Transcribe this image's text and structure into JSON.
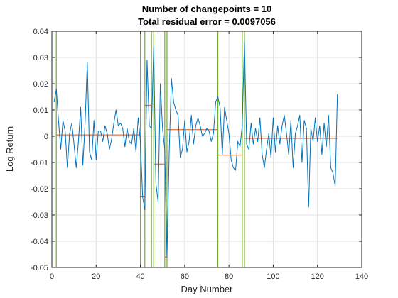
{
  "chart_data": {
    "type": "line",
    "title": "Number of changepoints = 10",
    "subtitle": "Total residual error = 0.0097056",
    "xlabel": "Day Number",
    "ylabel": "Log Return",
    "xlim": [
      0,
      140
    ],
    "ylim": [
      -0.05,
      0.04
    ],
    "xticks": [
      0,
      20,
      40,
      60,
      80,
      100,
      120,
      140
    ],
    "xtick_labels": [
      "0",
      "20",
      "40",
      "60",
      "80",
      "100",
      "120",
      "140"
    ],
    "yticks": [
      -0.05,
      -0.04,
      -0.03,
      -0.02,
      -0.01,
      0,
      0.01,
      0.02,
      0.03,
      0.04
    ],
    "ytick_labels": [
      "-0.05",
      "-0.04",
      "-0.03",
      "-0.02",
      "-0.01",
      "0",
      "0.01",
      "0.02",
      "0.03",
      "0.04"
    ],
    "grid": true,
    "colors": {
      "series": "#0072BD",
      "segment_mean": "#D95319",
      "changepoint": "#77AC30",
      "grid": "#e0e0e0",
      "axis": "#262626"
    },
    "series": [
      {
        "values": [
          0.013,
          0.018,
          0.006,
          -0.005,
          0.006,
          0.002,
          -0.012,
          0.001,
          0.005,
          -0.003,
          -0.012,
          -0.002,
          0.011,
          -0.011,
          0.005,
          0.028,
          -0.006,
          -0.009,
          0.006,
          -0.009,
          0.002,
          0.002,
          -0.002,
          0.004,
          0.001,
          -0.005,
          -0.001,
          0.005,
          0.01,
          0.004,
          0.005,
          0.003,
          -0.004,
          0.003,
          -0.002,
          -0.003,
          0.003,
          -0.006,
          0.007,
          -0.002,
          -0.023,
          -0.028,
          0.029,
          0.004,
          0.003,
          0.034,
          -0.018,
          -0.025,
          0.02,
          0.003,
          -0.005,
          -0.046,
          -0.006,
          0.022,
          0.013,
          0.01,
          0.008,
          -0.008,
          -0.005,
          0.006,
          -0.006,
          -0.002,
          0.008,
          -0.003,
          0.004,
          0.007,
          0.004,
          0.0,
          0.001,
          0.003,
          0.002,
          -0.002,
          0.001,
          0.013,
          0.015,
          0.011,
          -0.007,
          0.011,
          0.006,
          0.001,
          -0.009,
          -0.012,
          -0.013,
          -0.002,
          -0.004,
          0.004,
          0.036,
          -0.003,
          -0.005,
          0.005,
          -0.003,
          0.003,
          -0.002,
          0.007,
          -0.007,
          -0.012,
          -0.005,
          0.001,
          -0.008,
          0.007,
          -0.006,
          0.004,
          -0.003,
          0.004,
          0.008,
          0.001,
          -0.007,
          0.006,
          -0.012,
          0.001,
          0.004,
          0.008,
          -0.01,
          0.006,
          0.003,
          -0.027,
          0.003,
          -0.002,
          0.007,
          -0.002,
          0.004,
          -0.007,
          0.005,
          -0.004,
          0.008,
          -0.012,
          -0.014,
          -0.019,
          0.016
        ]
      }
    ],
    "changepoints": [
      2,
      40,
      42,
      45,
      46,
      51,
      52,
      75,
      86,
      87
    ],
    "segments": [
      {
        "x0": 2,
        "x1": 40,
        "y": 0.0005
      },
      {
        "x0": 40,
        "x1": 42,
        "y": -0.0228
      },
      {
        "x0": 42,
        "x1": 45,
        "y": 0.0118
      },
      {
        "x0": 46,
        "x1": 51,
        "y": -0.0106
      },
      {
        "x0": 51,
        "x1": 52,
        "y": -0.046
      },
      {
        "x0": 52,
        "x1": 75,
        "y": 0.0025
      },
      {
        "x0": 75,
        "x1": 86,
        "y": -0.0072
      },
      {
        "x0": 87,
        "x1": 129,
        "y": -0.0008
      }
    ]
  }
}
